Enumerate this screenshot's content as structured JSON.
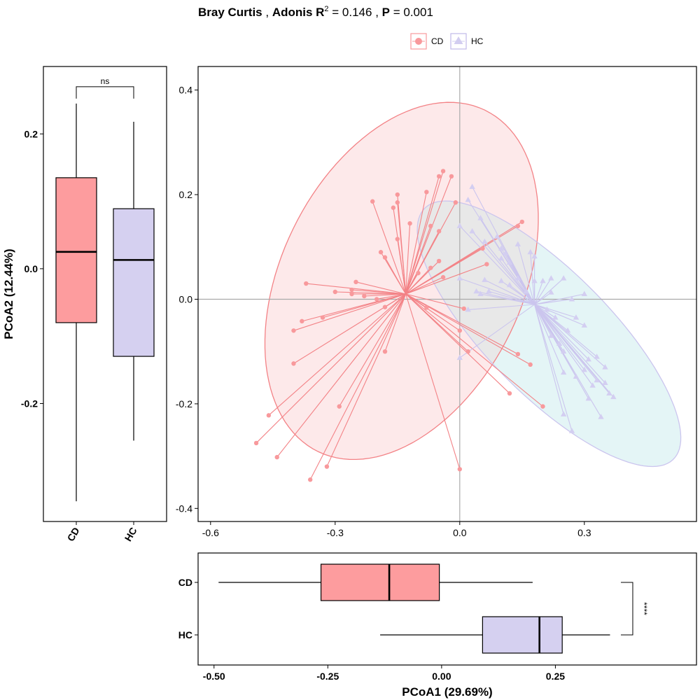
{
  "title": {
    "metric": "Bray Curtis",
    "sep1": " , ",
    "adonis": "Adonis R",
    "adonis_sup": "2",
    "r2_text": " = 0.146",
    "sep2": " , ",
    "p_label": "P",
    "p_text": " = 0.001"
  },
  "legend": [
    {
      "label": "CD",
      "shape": "circle",
      "color": "#f8999c",
      "stroke": "#f17a7f"
    },
    {
      "label": "HC",
      "shape": "triangle",
      "color": "#d2cdf0",
      "stroke": "#c0b9e8"
    }
  ],
  "colors": {
    "CD": "#f8999c",
    "CD_line": "#f38286",
    "CD_ellipse_fill": "#fde9ea",
    "HC": "#d3cef1",
    "HC_line": "#cbc5ee",
    "HC_ellipse_fill": "#e4f5f6",
    "overlap_fill": "#e8e8e8",
    "box_CD": "#fd9c9e",
    "box_HC": "#d5d0f0",
    "refline": "#aaaaaa"
  },
  "chart_data": [
    {
      "type": "scatter",
      "id": "pcoa",
      "xlim": [
        -0.63,
        0.57
      ],
      "ylim": [
        -0.425,
        0.445
      ],
      "xticks": [
        -0.6,
        -0.3,
        0.0,
        0.3
      ],
      "xtick_labels": [
        "-0.6",
        "-0.3",
        "0.0",
        "0.3"
      ],
      "yticks": [
        -0.4,
        -0.2,
        0.0,
        0.2,
        0.4
      ],
      "ytick_labels": [
        "-0.4",
        "-0.2",
        "0.0",
        "0.2",
        "0.4"
      ],
      "grid": false,
      "reference_lines": {
        "x": 0,
        "y": 0
      },
      "centroids": {
        "CD": [
          -0.13,
          0.01
        ],
        "HC": [
          0.18,
          -0.01
        ]
      },
      "ellipses": [
        {
          "group": "CD",
          "center": [
            -0.14,
            0.035
          ],
          "semi_axes": [
            0.39,
            0.27
          ],
          "angle_deg": 48
        },
        {
          "group": "HC",
          "center": [
            0.215,
            -0.066
          ],
          "semi_axes": [
            0.385,
            0.13
          ],
          "angle_deg": -37
        }
      ],
      "series": [
        {
          "name": "CD",
          "marker": "circle",
          "points": [
            [
              -0.04,
              0.245
            ],
            [
              -0.02,
              0.235
            ],
            [
              -0.05,
              0.235
            ],
            [
              -0.08,
              0.205
            ],
            [
              -0.15,
              0.2
            ],
            [
              -0.21,
              0.187
            ],
            [
              -0.15,
              0.185
            ],
            [
              -0.16,
              0.175
            ],
            [
              -0.01,
              0.185
            ],
            [
              -0.12,
              0.145
            ],
            [
              -0.07,
              0.14
            ],
            [
              -0.05,
              0.13
            ],
            [
              -0.15,
              0.115
            ],
            [
              0.15,
              0.148
            ],
            [
              0.14,
              0.14
            ],
            [
              0.055,
              0.097
            ],
            [
              0.065,
              0.067
            ],
            [
              -0.19,
              0.09
            ],
            [
              -0.18,
              0.08
            ],
            [
              -0.05,
              0.073
            ],
            [
              -0.07,
              0.06
            ],
            [
              -0.1,
              0.05
            ],
            [
              -0.04,
              0.042
            ],
            [
              -0.37,
              0.03
            ],
            [
              -0.25,
              0.033
            ],
            [
              -0.3,
              0.014
            ],
            [
              -0.26,
              0.018
            ],
            [
              -0.26,
              0.01
            ],
            [
              -0.23,
              0.006
            ],
            [
              -0.2,
              0.0
            ],
            [
              -0.18,
              -0.015
            ],
            [
              -0.33,
              -0.035
            ],
            [
              -0.38,
              -0.042
            ],
            [
              -0.4,
              -0.06
            ],
            [
              -0.08,
              -0.016
            ],
            [
              0.01,
              -0.018
            ],
            [
              0.0,
              -0.06
            ],
            [
              -0.18,
              -0.1
            ],
            [
              0.02,
              -0.1
            ],
            [
              -0.4,
              -0.123
            ],
            [
              0.14,
              -0.105
            ],
            [
              0.17,
              -0.125
            ],
            [
              0.12,
              -0.18
            ],
            [
              0.2,
              -0.205
            ],
            [
              -0.29,
              -0.205
            ],
            [
              -0.46,
              -0.222
            ],
            [
              -0.49,
              -0.275
            ],
            [
              -0.44,
              -0.302
            ],
            [
              -0.32,
              -0.32
            ],
            [
              -0.36,
              -0.345
            ],
            [
              0.0,
              -0.325
            ]
          ]
        },
        {
          "name": "HC",
          "marker": "triangle",
          "points": [
            [
              0.03,
              0.215
            ],
            [
              0.02,
              0.19
            ],
            [
              0.05,
              0.155
            ],
            [
              0.0,
              0.14
            ],
            [
              0.03,
              0.13
            ],
            [
              0.09,
              0.12
            ],
            [
              0.06,
              0.11
            ],
            [
              0.14,
              0.105
            ],
            [
              0.1,
              0.097
            ],
            [
              0.11,
              0.088
            ],
            [
              0.1,
              0.078
            ],
            [
              0.17,
              0.09
            ],
            [
              0.18,
              0.082
            ],
            [
              0.12,
              0.07
            ],
            [
              0.14,
              0.04
            ],
            [
              0.06,
              0.037
            ],
            [
              0.1,
              0.035
            ],
            [
              0.0,
              0.04
            ],
            [
              0.22,
              0.04
            ],
            [
              0.25,
              0.04
            ],
            [
              0.18,
              0.035
            ],
            [
              0.2,
              0.035
            ],
            [
              0.12,
              0.027
            ],
            [
              0.16,
              0.015
            ],
            [
              0.22,
              0.013
            ],
            [
              0.3,
              0.01
            ],
            [
              0.27,
              0.0
            ],
            [
              0.04,
              0.015
            ],
            [
              0.07,
              0.015
            ],
            [
              0.05,
              0.01
            ],
            [
              0.02,
              -0.02
            ],
            [
              0.21,
              -0.02
            ],
            [
              0.23,
              -0.035
            ],
            [
              0.28,
              -0.035
            ],
            [
              0.3,
              -0.05
            ],
            [
              0.26,
              -0.06
            ],
            [
              0.22,
              -0.07
            ],
            [
              0.24,
              -0.085
            ],
            [
              0.25,
              -0.1
            ],
            [
              0.31,
              -0.115
            ],
            [
              0.33,
              -0.11
            ],
            [
              0.35,
              -0.13
            ],
            [
              0.3,
              -0.135
            ],
            [
              0.25,
              -0.14
            ],
            [
              0.28,
              -0.148
            ],
            [
              0.33,
              -0.155
            ],
            [
              0.35,
              -0.16
            ],
            [
              0.32,
              -0.165
            ],
            [
              0.36,
              -0.18
            ],
            [
              0.37,
              -0.187
            ],
            [
              0.31,
              -0.19
            ],
            [
              0.25,
              -0.22
            ],
            [
              0.0,
              -0.112
            ],
            [
              0.34,
              -0.225
            ],
            [
              0.27,
              -0.252
            ]
          ]
        }
      ]
    },
    {
      "type": "box",
      "id": "pcoa2_box",
      "orientation": "vertical",
      "categories": [
        "CD",
        "HC"
      ],
      "ylabel": "PCoA2 (12.44%)",
      "ylim": [
        -0.375,
        0.3
      ],
      "yticks": [
        -0.2,
        0.0,
        0.2
      ],
      "ytick_labels": [
        "-0.2",
        "0.0",
        "0.2"
      ],
      "boxes": [
        {
          "name": "CD",
          "min": -0.345,
          "q1": -0.08,
          "median": 0.025,
          "q3": 0.135,
          "max": 0.245
        },
        {
          "name": "HC",
          "min": -0.255,
          "q1": -0.13,
          "median": 0.013,
          "q3": 0.089,
          "max": 0.218
        }
      ],
      "significance": {
        "pair": [
          "CD",
          "HC"
        ],
        "label": "ns",
        "y": 0.27
      }
    },
    {
      "type": "box",
      "id": "pcoa1_box",
      "orientation": "horizontal",
      "categories": [
        "CD",
        "HC"
      ],
      "xlabel": "PCoA1 (29.69%)",
      "xlim": [
        -0.535,
        0.56
      ],
      "xticks": [
        -0.5,
        -0.25,
        0.0,
        0.25
      ],
      "xtick_labels": [
        "-0.50",
        "-0.25",
        "0.00",
        "0.25"
      ],
      "boxes": [
        {
          "name": "CD",
          "min": -0.49,
          "q1": -0.265,
          "median": -0.115,
          "q3": -0.005,
          "max": 0.2
        },
        {
          "name": "HC",
          "min": -0.135,
          "q1": 0.09,
          "median": 0.215,
          "q3": 0.265,
          "max": 0.37
        }
      ],
      "significance": {
        "pair": [
          "CD",
          "HC"
        ],
        "label": "****",
        "x": 0.42
      }
    }
  ]
}
